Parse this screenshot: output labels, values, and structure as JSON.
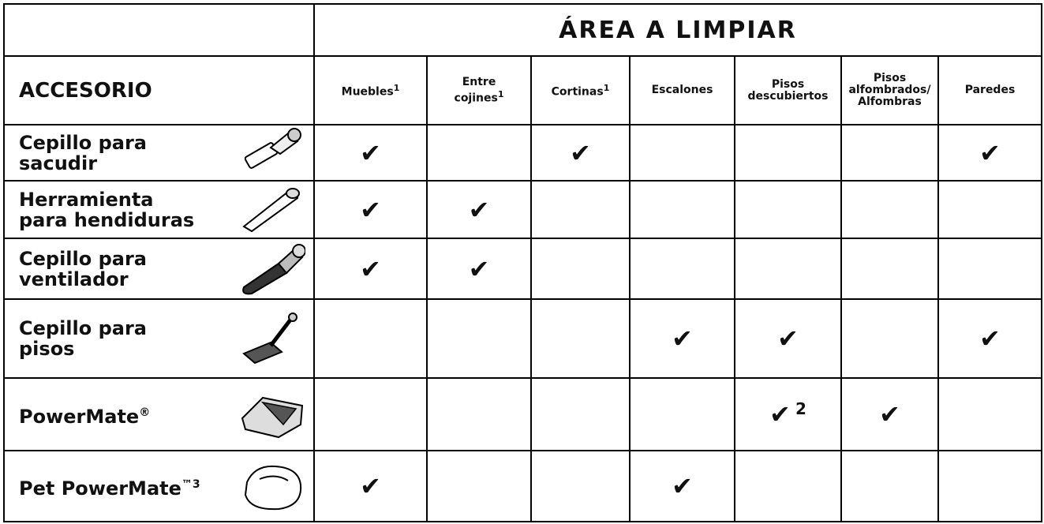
{
  "header": {
    "area": "ÁREA A LIMPIAR",
    "accessory": "ACCESORIO"
  },
  "columns": [
    {
      "lines": [
        "Muebles"
      ],
      "sup": "1"
    },
    {
      "lines": [
        "Entre",
        "cojines"
      ],
      "sup": "1"
    },
    {
      "lines": [
        "Cortinas"
      ],
      "sup": "1"
    },
    {
      "lines": [
        "Escalones"
      ]
    },
    {
      "lines": [
        "Pisos",
        "descubiertos"
      ]
    },
    {
      "lines": [
        "Pisos",
        "alfombrados/",
        "Alfombras"
      ]
    },
    {
      "lines": [
        "Paredes"
      ]
    }
  ],
  "rows": [
    {
      "name": "Cepillo para sacudir",
      "checks": [
        "✔",
        null,
        "✔",
        null,
        null,
        null,
        "✔"
      ]
    },
    {
      "name": "Herramienta para hendiduras",
      "checks": [
        "✔",
        "✔",
        null,
        null,
        null,
        null,
        null
      ]
    },
    {
      "name": "Cepillo para ventilador",
      "checks": [
        "✔",
        "✔",
        null,
        null,
        null,
        null,
        null
      ]
    },
    {
      "name": "Cepillo para pisos",
      "checks": [
        null,
        null,
        null,
        "✔",
        "✔",
        null,
        "✔"
      ]
    },
    {
      "name": "PowerMate",
      "sup": "®",
      "checks": [
        null,
        null,
        null,
        null,
        {
          "mark": "✔",
          "note": "2"
        },
        "✔",
        null
      ]
    },
    {
      "name": "Pet PowerMate",
      "sup": "™3",
      "checks": [
        "✔",
        null,
        null,
        "✔",
        null,
        null,
        null
      ]
    }
  ]
}
